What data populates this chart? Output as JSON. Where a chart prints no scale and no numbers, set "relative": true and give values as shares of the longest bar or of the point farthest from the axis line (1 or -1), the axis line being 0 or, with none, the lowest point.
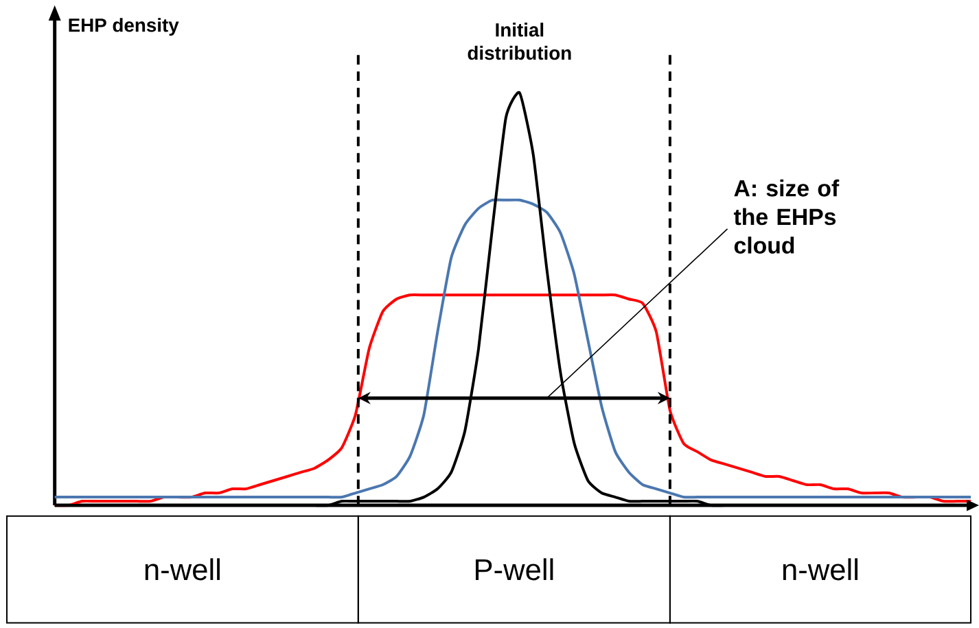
{
  "chart_data": {
    "type": "line",
    "relative": true,
    "ylabel": "EHP density",
    "categories": [
      null,
      null,
      null,
      null,
      null,
      null,
      null,
      null,
      null,
      null,
      null,
      null,
      null,
      null,
      null,
      null,
      null,
      null,
      null,
      null,
      null,
      null,
      null,
      null,
      null,
      null,
      null,
      null,
      null,
      null,
      null,
      null,
      null,
      null,
      null,
      null,
      null,
      null,
      null,
      null,
      null,
      null,
      null,
      null,
      null,
      null,
      null,
      null,
      null,
      null,
      null,
      null,
      null,
      null,
      null,
      null,
      null,
      null,
      null,
      null,
      null,
      null,
      null,
      null,
      null,
      null,
      null,
      null
    ],
    "series": [
      {
        "color": "#ff0000",
        "values": [
          0,
          0,
          0.01,
          0.01,
          0.01,
          0.01,
          0.01,
          0.01,
          0.02,
          0.02,
          0.02,
          0.03,
          0.03,
          0.04,
          0.04,
          0.05,
          0.06,
          0.07,
          0.08,
          0.09,
          0.11,
          0.14,
          0.22,
          0.38,
          0.47,
          0.5,
          0.51,
          0.51,
          0.51,
          0.51,
          0.51,
          0.51,
          0.51,
          0.51,
          0.51,
          0.51,
          0.51,
          0.51,
          0.51,
          0.51,
          0.51,
          0.51,
          0.5,
          0.49,
          0.42,
          0.23,
          0.15,
          0.13,
          0.11,
          0.1,
          0.09,
          0.08,
          0.07,
          0.07,
          0.06,
          0.05,
          0.05,
          0.04,
          0.04,
          0.03,
          0.03,
          0.03,
          0.02,
          0.02,
          0.02,
          0.01,
          0.01,
          0.01
        ]
      },
      {
        "color": "#4a77b0",
        "values": [
          0.02,
          0.02,
          0.02,
          0.02,
          0.02,
          0.02,
          0.02,
          0.02,
          0.02,
          0.02,
          0.02,
          0.02,
          0.02,
          0.02,
          0.02,
          0.02,
          0.02,
          0.02,
          0.02,
          0.02,
          0.02,
          0.02,
          0.03,
          0.04,
          0.05,
          0.07,
          0.12,
          0.22,
          0.42,
          0.6,
          0.68,
          0.72,
          0.74,
          0.74,
          0.74,
          0.73,
          0.71,
          0.66,
          0.56,
          0.4,
          0.24,
          0.13,
          0.08,
          0.05,
          0.04,
          0.03,
          0.02,
          0.02,
          0.02,
          0.02,
          0.02,
          0.02,
          0.02,
          0.02,
          0.02,
          0.02,
          0.02,
          0.02,
          0.02,
          0.02,
          0.02,
          0.02,
          0.02,
          0.02,
          0.02,
          0.02,
          0.02,
          0.02
        ]
      },
      {
        "color": "#000000",
        "values": [
          0,
          0,
          0,
          0,
          0,
          0,
          0,
          0,
          0,
          0,
          0,
          0,
          0,
          0,
          0,
          0,
          0,
          0,
          0,
          0,
          0,
          0.01,
          0.01,
          0.01,
          0.01,
          0.01,
          0.01,
          0.02,
          0.04,
          0.08,
          0.18,
          0.38,
          0.67,
          0.94,
          1.0,
          0.85,
          0.57,
          0.32,
          0.15,
          0.06,
          0.03,
          0.02,
          0.01,
          0.01,
          0.01,
          0.01,
          0.01,
          0.01,
          0,
          0,
          0,
          0,
          0,
          0,
          0,
          0,
          0,
          0,
          0,
          0,
          0,
          0,
          0,
          0,
          0,
          0,
          0,
          0
        ]
      }
    ],
    "annotations": [
      "Initial distribution",
      "A: size of the EHPs cloud",
      "n-well",
      "P-well",
      "n-well"
    ]
  }
}
